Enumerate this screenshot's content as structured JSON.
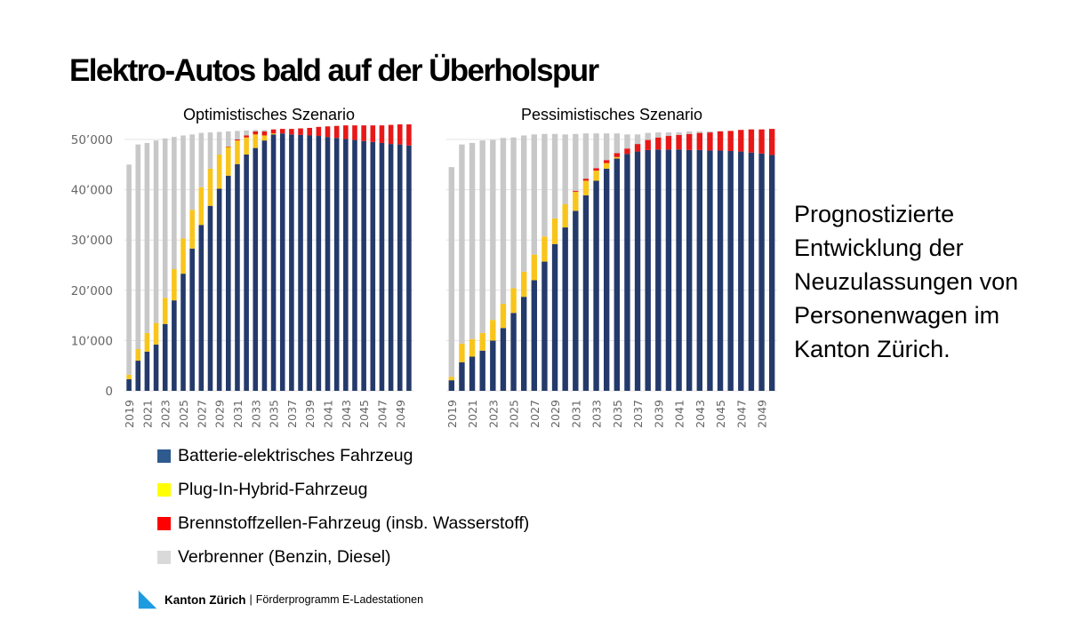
{
  "slide": {
    "title": "Elektro-Autos bald auf der Überholspur",
    "side_text": [
      "Prognostizierte",
      "Entwicklung der",
      "Neuzulassungen von",
      "Personenwagen im",
      "Kanton Zürich."
    ],
    "footer": {
      "brand": "Kanton Zürich",
      "separator": "|",
      "program": "Förderprogramm E-Ladestationen"
    }
  },
  "legend": [
    {
      "key": "bev",
      "label": "Batterie-elektrisches Fahrzeug",
      "color": "#2e5a8e"
    },
    {
      "key": "phev",
      "label": "Plug-In-Hybrid-Fahrzeug",
      "color": "#ffff00"
    },
    {
      "key": "fcev",
      "label": "Brennstoffzellen-Fahrzeug (insb. Wasserstoff)",
      "color": "#ff0000"
    },
    {
      "key": "ice",
      "label": "Verbrenner (Benzin, Diesel)",
      "color": "#d9d9d9"
    }
  ],
  "chart_data": [
    {
      "type": "bar",
      "stacked": true,
      "title": "Optimistisches Szenario",
      "xlabel": "",
      "ylabel": "",
      "ylim": [
        0,
        50000
      ],
      "yticks": [
        0,
        10000,
        20000,
        30000,
        40000,
        50000
      ],
      "ytick_labels": [
        "0",
        "10’000",
        "20’000",
        "30’000",
        "40’000",
        "50’000"
      ],
      "x_tick_labels": [
        "2019",
        "2021",
        "2023",
        "2025",
        "2027",
        "2029",
        "2031",
        "2033",
        "2035",
        "2037",
        "2039",
        "2041",
        "2043",
        "2045",
        "2047",
        "2049"
      ],
      "grid": true,
      "categories": [
        2019,
        2020,
        2021,
        2022,
        2023,
        2024,
        2025,
        2026,
        2027,
        2028,
        2029,
        2030,
        2031,
        2032,
        2033,
        2034,
        2035,
        2036,
        2037,
        2038,
        2039,
        2040,
        2041,
        2042,
        2043,
        2044,
        2045,
        2046,
        2047,
        2048,
        2049,
        2050
      ],
      "series": [
        {
          "name": "Batterie-elektrisches Fahrzeug",
          "color": "#243a6b",
          "values": [
            2300,
            6000,
            7800,
            9200,
            13300,
            18000,
            23300,
            28300,
            33000,
            36800,
            40200,
            42800,
            45100,
            47000,
            48300,
            49800,
            51000,
            51200,
            51000,
            50900,
            50800,
            50700,
            50500,
            50300,
            50100,
            49900,
            49700,
            49500,
            49300,
            49100,
            49000,
            48800
          ]
        },
        {
          "name": "Plug-In-Hybrid-Fahrzeug",
          "color": "#f8c51c",
          "values": [
            900,
            2300,
            3700,
            4300,
            5200,
            6200,
            7000,
            7700,
            7500,
            7400,
            6800,
            5700,
            4700,
            3400,
            2700,
            1000,
            200,
            0,
            0,
            0,
            0,
            0,
            0,
            0,
            0,
            0,
            0,
            0,
            0,
            0,
            0,
            0
          ]
        },
        {
          "name": "Brennstoffzellen-Fahrzeug (insb. Wasserstoff)",
          "color": "#e81818",
          "values": [
            0,
            0,
            0,
            0,
            0,
            0,
            0,
            0,
            0,
            0,
            0,
            100,
            200,
            400,
            600,
            800,
            800,
            900,
            1100,
            1300,
            1500,
            1800,
            2100,
            2400,
            2700,
            2900,
            3100,
            3300,
            3500,
            3800,
            4000,
            4200
          ]
        },
        {
          "name": "Verbrenner (Benzin, Diesel)",
          "color": "#c8c8c8",
          "values": [
            41800,
            40700,
            37800,
            36300,
            31700,
            26300,
            20500,
            15000,
            10800,
            7200,
            4500,
            3000,
            1700,
            1000,
            300,
            300,
            0,
            0,
            0,
            0,
            0,
            0,
            0,
            0,
            0,
            0,
            0,
            0,
            0,
            0,
            0,
            0
          ]
        }
      ]
    },
    {
      "type": "bar",
      "stacked": true,
      "title": "Pessimistisches Szenario",
      "xlabel": "",
      "ylabel": "",
      "ylim": [
        0,
        50000
      ],
      "yticks": [
        0,
        10000,
        20000,
        30000,
        40000,
        50000
      ],
      "x_tick_labels": [
        "2019",
        "2021",
        "2023",
        "2025",
        "2027",
        "2029",
        "2031",
        "2033",
        "2035",
        "2037",
        "2039",
        "2041",
        "2043",
        "2045",
        "2047",
        "2049"
      ],
      "grid": true,
      "categories": [
        2019,
        2020,
        2021,
        2022,
        2023,
        2024,
        2025,
        2026,
        2027,
        2028,
        2029,
        2030,
        2031,
        2032,
        2033,
        2034,
        2035,
        2036,
        2037,
        2038,
        2039,
        2040,
        2041,
        2042,
        2043,
        2044,
        2045,
        2046,
        2047,
        2048,
        2049,
        2050
      ],
      "series": [
        {
          "name": "Batterie-elektrisches Fahrzeug",
          "color": "#243a6b",
          "values": [
            2100,
            5700,
            6800,
            8000,
            10000,
            12500,
            15500,
            18700,
            22000,
            25700,
            29200,
            32500,
            35800,
            38900,
            41800,
            44200,
            46200,
            47100,
            47600,
            47900,
            48000,
            48000,
            48000,
            47900,
            47900,
            47800,
            47800,
            47700,
            47600,
            47400,
            47200,
            46900
          ]
        },
        {
          "name": "Plug-In-Hybrid-Fahrzeug",
          "color": "#f8c51c",
          "values": [
            700,
            3700,
            3500,
            3500,
            4100,
            4800,
            4900,
            5000,
            5100,
            5000,
            5100,
            4600,
            3800,
            2900,
            2000,
            1100,
            300,
            0,
            0,
            0,
            0,
            0,
            0,
            0,
            0,
            0,
            0,
            0,
            0,
            0,
            0,
            0
          ]
        },
        {
          "name": "Brennstoffzellen-Fahrzeug (insb. Wasserstoff)",
          "color": "#e81818",
          "values": [
            0,
            0,
            0,
            0,
            0,
            0,
            0,
            0,
            0,
            0,
            0,
            0,
            200,
            400,
            500,
            600,
            800,
            1100,
            1500,
            2000,
            2400,
            2700,
            2900,
            3200,
            3400,
            3600,
            3800,
            4000,
            4300,
            4600,
            4800,
            5200
          ]
        },
        {
          "name": "Verbrenner (Benzin, Diesel)",
          "color": "#c8c8c8",
          "values": [
            41700,
            39600,
            39000,
            38300,
            35800,
            33000,
            30000,
            27100,
            23900,
            20400,
            16800,
            13900,
            11300,
            9000,
            6900,
            5300,
            3900,
            2800,
            1900,
            1400,
            1000,
            700,
            500,
            500,
            300,
            200,
            100,
            0,
            0,
            0,
            0,
            0
          ]
        }
      ]
    }
  ]
}
